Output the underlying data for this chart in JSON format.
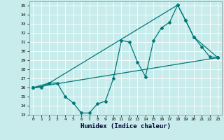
{
  "xlabel": "Humidex (Indice chaleur)",
  "bg_color": "#c8ecec",
  "grid_color": "#b8dada",
  "line_color": "#007878",
  "xlim": [
    -0.5,
    23.5
  ],
  "ylim": [
    23,
    35.5
  ],
  "xticks": [
    0,
    1,
    2,
    3,
    4,
    5,
    6,
    7,
    8,
    9,
    10,
    11,
    12,
    13,
    14,
    15,
    16,
    17,
    18,
    19,
    20,
    21,
    22,
    23
  ],
  "yticks": [
    23,
    24,
    25,
    26,
    27,
    28,
    29,
    30,
    31,
    32,
    33,
    34,
    35
  ],
  "line1_x": [
    0,
    1,
    2,
    3,
    4,
    5,
    6,
    7,
    8,
    9,
    10,
    11,
    12,
    13,
    14,
    15,
    16,
    17,
    18,
    19,
    20,
    21,
    22,
    23
  ],
  "line1_y": [
    26.0,
    26.0,
    26.5,
    26.5,
    25.0,
    24.3,
    23.2,
    23.2,
    24.2,
    24.5,
    27.0,
    31.2,
    31.0,
    28.8,
    27.2,
    31.2,
    32.6,
    33.2,
    35.1,
    33.4,
    31.6,
    30.5,
    29.4,
    29.3
  ],
  "line2_x": [
    0,
    2,
    18,
    19,
    20,
    23
  ],
  "line2_y": [
    26.0,
    26.5,
    35.1,
    33.4,
    31.6,
    29.3
  ],
  "line3_x": [
    0,
    23
  ],
  "line3_y": [
    26.0,
    29.3
  ]
}
